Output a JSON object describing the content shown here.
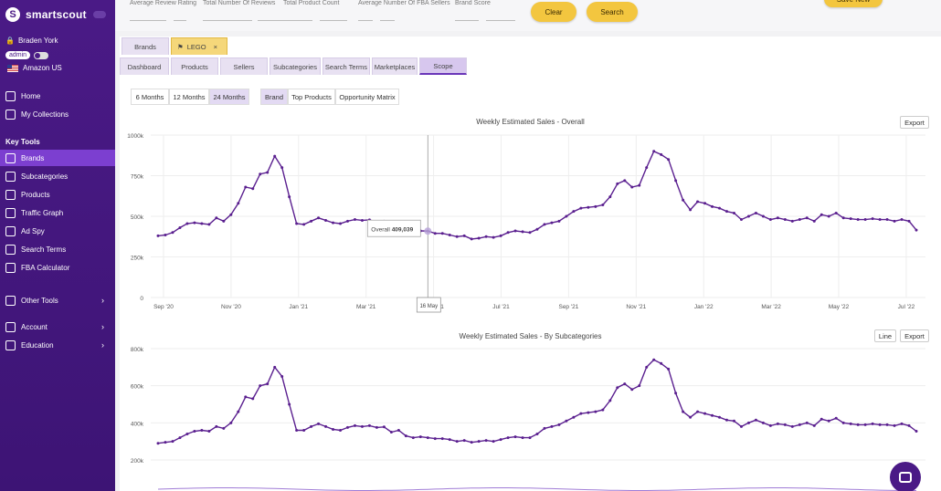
{
  "app": {
    "name": "smartscout"
  },
  "user": {
    "name": "Braden York",
    "role": "admin",
    "marketplace": "Amazon US"
  },
  "nav": {
    "main": [
      {
        "label": "Home",
        "icon": "home-icon"
      },
      {
        "label": "My Collections",
        "icon": "collection-icon"
      }
    ],
    "section_label": "Key Tools",
    "tools": [
      {
        "label": "Brands",
        "icon": "tag-icon",
        "active": true
      },
      {
        "label": "Subcategories",
        "icon": "subcategory-icon"
      },
      {
        "label": "Products",
        "icon": "box-icon"
      },
      {
        "label": "Traffic Graph",
        "icon": "graph-icon"
      },
      {
        "label": "Ad Spy",
        "icon": "spy-icon"
      },
      {
        "label": "Search Terms",
        "icon": "search-terms-icon"
      },
      {
        "label": "FBA Calculator",
        "icon": "calculator-icon"
      }
    ],
    "other": [
      {
        "label": "Other Tools",
        "icon": "tools-icon"
      },
      {
        "label": "Account",
        "icon": "account-icon"
      },
      {
        "label": "Education",
        "icon": "education-icon"
      }
    ]
  },
  "filters": {
    "labels": [
      "Average Review Rating",
      "Total Number Of Reviews",
      "Total Product Count",
      "Average Number Of FBA Sellers",
      "Brand Score"
    ],
    "clear_label": "Clear",
    "search_label": "Search",
    "save_label": "Save New"
  },
  "breadcrumb_tabs": {
    "first": "Brands",
    "second": "LEGO",
    "close": "×"
  },
  "view_tabs": [
    "Dashboard",
    "Products",
    "Sellers",
    "Subcategories",
    "Search Terms",
    "Marketplaces",
    "Scope"
  ],
  "selected_view_tab": "Scope",
  "range_buttons": [
    "6 Months",
    "12 Months",
    "24 Months"
  ],
  "selected_range": "24 Months",
  "mode_buttons": [
    "Brand",
    "Top Products",
    "Opportunity Matrix"
  ],
  "selected_mode": "Brand",
  "chart1": {
    "title": "Weekly Estimated Sales - Overall",
    "export_label": "Export",
    "tooltip_label": "Overall",
    "tooltip_value": "409,039",
    "crosshair_label": "16 May"
  },
  "chart2": {
    "title": "Weekly Estimated Sales - By Subcategories",
    "line_label": "Line",
    "export_label": "Export"
  },
  "colors": {
    "accent": "#4a1a86",
    "series": "#5a1f8f",
    "highlight": "#f3c63f"
  },
  "chart_data": [
    {
      "type": "line",
      "title": "Weekly Estimated Sales - Overall",
      "xlabel": "",
      "ylabel": "",
      "ylim": [
        0,
        1000000
      ],
      "ytick_labels": [
        "0",
        "250k",
        "500k",
        "750k",
        "1000k"
      ],
      "xtick_labels": [
        "Sep '20",
        "Nov '20",
        "Jan '21",
        "Mar '21",
        "May '21",
        "Jul '21",
        "Sep '21",
        "Nov '21",
        "Jan '22",
        "Mar '22",
        "May '22",
        "Jul '22"
      ],
      "grid": true,
      "series": [
        {
          "values": [
            380000,
            385000,
            400000,
            430000,
            455000,
            460000,
            455000,
            450000,
            490000,
            470000,
            510000,
            580000,
            680000,
            670000,
            760000,
            770000,
            870000,
            800000,
            620000,
            455000,
            450000,
            470000,
            490000,
            475000,
            460000,
            455000,
            470000,
            480000,
            475000,
            478000,
            465000,
            470000,
            440000,
            450000,
            420000,
            400000,
            410000,
            409000,
            395000,
            395000,
            385000,
            375000,
            380000,
            360000,
            365000,
            375000,
            370000,
            380000,
            400000,
            410000,
            405000,
            400000,
            420000,
            450000,
            460000,
            470000,
            500000,
            530000,
            550000,
            555000,
            560000,
            570000,
            620000,
            700000,
            720000,
            680000,
            690000,
            800000,
            900000,
            880000,
            850000,
            720000,
            600000,
            540000,
            590000,
            580000,
            560000,
            550000,
            530000,
            520000,
            480000,
            500000,
            520000,
            500000,
            480000,
            490000,
            480000,
            470000,
            480000,
            490000,
            470000,
            510000,
            500000,
            520000,
            490000,
            485000,
            480000,
            480000,
            485000,
            480000,
            480000,
            470000,
            480000,
            470000,
            415000
          ]
        }
      ]
    },
    {
      "type": "line",
      "title": "Weekly Estimated Sales - By Subcategories",
      "xlabel": "",
      "ylabel": "",
      "ylim": [
        200000,
        800000
      ],
      "ytick_labels": [
        "200k",
        "400k",
        "600k",
        "800k"
      ],
      "grid": true,
      "series": [
        {
          "values": [
            290000,
            295000,
            300000,
            320000,
            340000,
            355000,
            360000,
            355000,
            380000,
            370000,
            400000,
            460000,
            540000,
            530000,
            600000,
            610000,
            700000,
            650000,
            500000,
            360000,
            360000,
            380000,
            395000,
            380000,
            365000,
            360000,
            375000,
            385000,
            380000,
            385000,
            375000,
            378000,
            350000,
            360000,
            330000,
            320000,
            325000,
            320000,
            315000,
            315000,
            310000,
            300000,
            305000,
            295000,
            300000,
            305000,
            300000,
            310000,
            320000,
            325000,
            320000,
            320000,
            340000,
            370000,
            380000,
            390000,
            410000,
            430000,
            450000,
            455000,
            460000,
            470000,
            520000,
            590000,
            610000,
            580000,
            600000,
            700000,
            740000,
            720000,
            690000,
            560000,
            460000,
            430000,
            460000,
            450000,
            440000,
            430000,
            415000,
            410000,
            380000,
            400000,
            415000,
            400000,
            385000,
            395000,
            390000,
            380000,
            390000,
            400000,
            385000,
            420000,
            410000,
            425000,
            400000,
            395000,
            390000,
            390000,
            395000,
            390000,
            390000,
            385000,
            395000,
            385000,
            355000
          ]
        }
      ]
    }
  ]
}
